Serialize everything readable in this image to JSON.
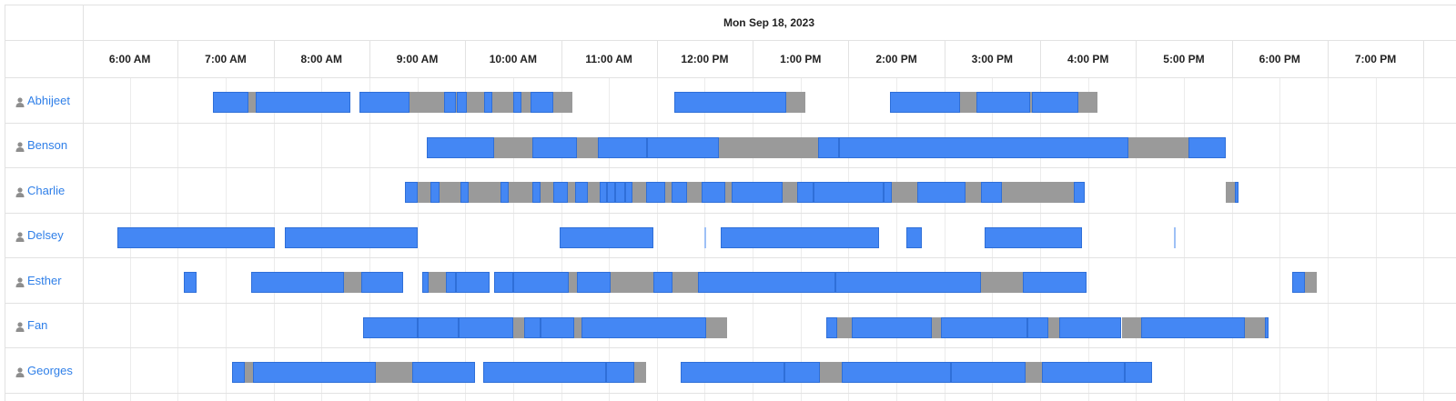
{
  "header": {
    "date": "Mon Sep 18, 2023"
  },
  "hours": [
    "6:00 AM",
    "7:00 AM",
    "8:00 AM",
    "9:00 AM",
    "10:00 AM",
    "11:00 AM",
    "12:00 PM",
    "1:00 PM",
    "2:00 PM",
    "3:00 PM",
    "4:00 PM",
    "5:00 PM",
    "6:00 PM",
    "7:00 PM"
  ],
  "colors": {
    "work": "#4487f4",
    "gap": "#9a9a9a",
    "link": "#2f7fe8",
    "grid": "#e2e2e2"
  },
  "people": [
    {
      "name": "Abhijeet",
      "icon": "user-icon",
      "segments": [
        [
          "w",
          "6:52",
          "7:14"
        ],
        [
          "g",
          "7:14",
          "7:19"
        ],
        [
          "w",
          "7:19",
          "8:18"
        ],
        [
          "w",
          "8:24",
          "8:55"
        ],
        [
          "g",
          "8:55",
          "9:17"
        ],
        [
          "w",
          "9:17",
          "9:24"
        ],
        [
          "g",
          "9:24",
          "9:25"
        ],
        [
          "w",
          "9:25",
          "9:31"
        ],
        [
          "g",
          "9:31",
          "9:42"
        ],
        [
          "w",
          "9:42",
          "9:47"
        ],
        [
          "g",
          "9:47",
          "10:00"
        ],
        [
          "w",
          "10:00",
          "10:05"
        ],
        [
          "g",
          "10:05",
          "10:11"
        ],
        [
          "w",
          "10:11",
          "10:25"
        ],
        [
          "g",
          "10:25",
          "10:37"
        ],
        [
          "w",
          "11:41",
          "12:51"
        ],
        [
          "g",
          "12:51",
          "13:03"
        ],
        [
          "w",
          "13:56",
          "14:40"
        ],
        [
          "g",
          "14:40",
          "14:50"
        ],
        [
          "w",
          "14:50",
          "15:24"
        ],
        [
          "g",
          "15:24",
          "15:25"
        ],
        [
          "w",
          "15:25",
          "15:54"
        ],
        [
          "g",
          "15:54",
          "16:06"
        ]
      ]
    },
    {
      "name": "Benson",
      "icon": "user-icon",
      "segments": [
        [
          "w",
          "9:06",
          "9:48"
        ],
        [
          "g",
          "9:48",
          "10:12"
        ],
        [
          "w",
          "10:12",
          "10:40"
        ],
        [
          "g",
          "10:40",
          "10:53"
        ],
        [
          "w",
          "10:53",
          "11:24"
        ],
        [
          "w",
          "11:24",
          "12:09"
        ],
        [
          "g",
          "12:09",
          "13:11"
        ],
        [
          "w",
          "13:11",
          "13:24"
        ],
        [
          "w",
          "13:24",
          "16:25"
        ],
        [
          "g",
          "16:25",
          "17:03"
        ],
        [
          "w",
          "17:03",
          "17:26"
        ]
      ]
    },
    {
      "name": "Charlie",
      "icon": "user-icon",
      "segments": [
        [
          "w",
          "8:52",
          "9:00"
        ],
        [
          "g",
          "9:00",
          "9:08"
        ],
        [
          "w",
          "9:08",
          "9:14"
        ],
        [
          "g",
          "9:14",
          "9:27"
        ],
        [
          "w",
          "9:27",
          "9:32"
        ],
        [
          "g",
          "9:32",
          "9:52"
        ],
        [
          "w",
          "9:52",
          "9:57"
        ],
        [
          "g",
          "9:57",
          "10:12"
        ],
        [
          "w",
          "10:12",
          "10:17"
        ],
        [
          "g",
          "10:17",
          "10:25"
        ],
        [
          "w",
          "10:25",
          "10:34"
        ],
        [
          "g",
          "10:34",
          "10:39"
        ],
        [
          "w",
          "10:39",
          "10:47"
        ],
        [
          "g",
          "10:47",
          "10:54"
        ],
        [
          "w",
          "10:54",
          "10:59"
        ],
        [
          "w",
          "10:59",
          "11:04"
        ],
        [
          "w",
          "11:04",
          "11:10"
        ],
        [
          "w",
          "11:10",
          "11:15"
        ],
        [
          "g",
          "11:15",
          "11:23"
        ],
        [
          "w",
          "11:23",
          "11:35"
        ],
        [
          "g",
          "11:35",
          "11:39"
        ],
        [
          "w",
          "11:39",
          "11:49"
        ],
        [
          "g",
          "11:49",
          "11:58"
        ],
        [
          "w",
          "11:58",
          "12:13"
        ],
        [
          "g",
          "12:13",
          "12:17"
        ],
        [
          "w",
          "12:17",
          "12:49"
        ],
        [
          "g",
          "12:49",
          "12:58"
        ],
        [
          "w",
          "12:58",
          "13:08"
        ],
        [
          "w",
          "13:08",
          "13:52"
        ],
        [
          "w",
          "13:52",
          "13:57"
        ],
        [
          "g",
          "13:57",
          "14:13"
        ],
        [
          "w",
          "14:13",
          "14:43"
        ],
        [
          "g",
          "14:43",
          "14:53"
        ],
        [
          "w",
          "14:53",
          "15:06"
        ],
        [
          "g",
          "15:06",
          "15:51"
        ],
        [
          "w",
          "15:51",
          "15:58"
        ],
        [
          "g",
          "17:26",
          "17:32"
        ],
        [
          "w",
          "17:32",
          "17:34"
        ]
      ]
    },
    {
      "name": "Delsey",
      "icon": "user-icon",
      "segments": [
        [
          "w",
          "5:52",
          "7:31"
        ],
        [
          "w",
          "7:37",
          "9:00"
        ],
        [
          "w",
          "10:29",
          "11:28"
        ],
        [
          "t",
          "12:00",
          "12:01"
        ],
        [
          "w",
          "12:10",
          "13:49"
        ],
        [
          "w",
          "14:06",
          "14:16"
        ],
        [
          "w",
          "14:55",
          "15:56"
        ],
        [
          "t",
          "16:54",
          "16:55"
        ]
      ]
    },
    {
      "name": "Esther",
      "icon": "user-icon",
      "segments": [
        [
          "w",
          "6:34",
          "6:42"
        ],
        [
          "w",
          "7:16",
          "8:14"
        ],
        [
          "g",
          "8:14",
          "8:25"
        ],
        [
          "w",
          "8:25",
          "8:51"
        ],
        [
          "w",
          "9:03",
          "9:07"
        ],
        [
          "g",
          "9:07",
          "9:18"
        ],
        [
          "w",
          "9:18",
          "9:24"
        ],
        [
          "w",
          "9:24",
          "9:45"
        ],
        [
          "w",
          "9:48",
          "10:00"
        ],
        [
          "w",
          "10:00",
          "10:35"
        ],
        [
          "g",
          "10:35",
          "10:40"
        ],
        [
          "w",
          "10:40",
          "11:01"
        ],
        [
          "g",
          "11:01",
          "11:28"
        ],
        [
          "w",
          "11:28",
          "11:40"
        ],
        [
          "g",
          "11:40",
          "11:56"
        ],
        [
          "w",
          "11:56",
          "13:22"
        ],
        [
          "w",
          "13:22",
          "14:53"
        ],
        [
          "g",
          "14:53",
          "15:19"
        ],
        [
          "w",
          "15:19",
          "15:59"
        ],
        [
          "w",
          "18:08",
          "18:16"
        ],
        [
          "g",
          "18:16",
          "18:23"
        ]
      ]
    },
    {
      "name": "Fan",
      "icon": "user-icon",
      "segments": [
        [
          "w",
          "8:26",
          "9:00"
        ],
        [
          "w",
          "9:00",
          "9:26"
        ],
        [
          "w",
          "9:26",
          "10:00"
        ],
        [
          "g",
          "10:00",
          "10:07"
        ],
        [
          "w",
          "10:07",
          "10:17"
        ],
        [
          "w",
          "10:17",
          "10:38"
        ],
        [
          "g",
          "10:38",
          "10:43"
        ],
        [
          "w",
          "10:43",
          "12:01"
        ],
        [
          "g",
          "12:01",
          "12:14"
        ],
        [
          "w",
          "13:16",
          "13:23"
        ],
        [
          "g",
          "13:23",
          "13:32"
        ],
        [
          "w",
          "13:32",
          "14:22"
        ],
        [
          "g",
          "14:22",
          "14:28"
        ],
        [
          "w",
          "14:28",
          "15:22"
        ],
        [
          "w",
          "15:22",
          "15:35"
        ],
        [
          "g",
          "15:35",
          "15:42"
        ],
        [
          "w",
          "15:42",
          "16:21"
        ],
        [
          "g",
          "16:21",
          "16:33"
        ],
        [
          "w",
          "16:33",
          "17:38"
        ],
        [
          "g",
          "17:38",
          "17:51"
        ],
        [
          "w",
          "17:51",
          "17:53"
        ]
      ]
    },
    {
      "name": "Georges",
      "icon": "user-icon",
      "segments": [
        [
          "w",
          "7:04",
          "7:12"
        ],
        [
          "g",
          "7:12",
          "7:17"
        ],
        [
          "w",
          "7:17",
          "8:34"
        ],
        [
          "g",
          "8:34",
          "8:57"
        ],
        [
          "w",
          "8:57",
          "9:36"
        ],
        [
          "w",
          "9:41",
          "10:58"
        ],
        [
          "w",
          "10:58",
          "11:16"
        ],
        [
          "g",
          "11:16",
          "11:23"
        ],
        [
          "w",
          "11:45",
          "12:50"
        ],
        [
          "w",
          "12:50",
          "13:12"
        ],
        [
          "g",
          "13:12",
          "13:26"
        ],
        [
          "w",
          "13:26",
          "14:34"
        ],
        [
          "w",
          "14:34",
          "15:21"
        ],
        [
          "g",
          "15:21",
          "15:31"
        ],
        [
          "w",
          "15:31",
          "16:23"
        ],
        [
          "w",
          "16:23",
          "16:40"
        ]
      ]
    }
  ]
}
